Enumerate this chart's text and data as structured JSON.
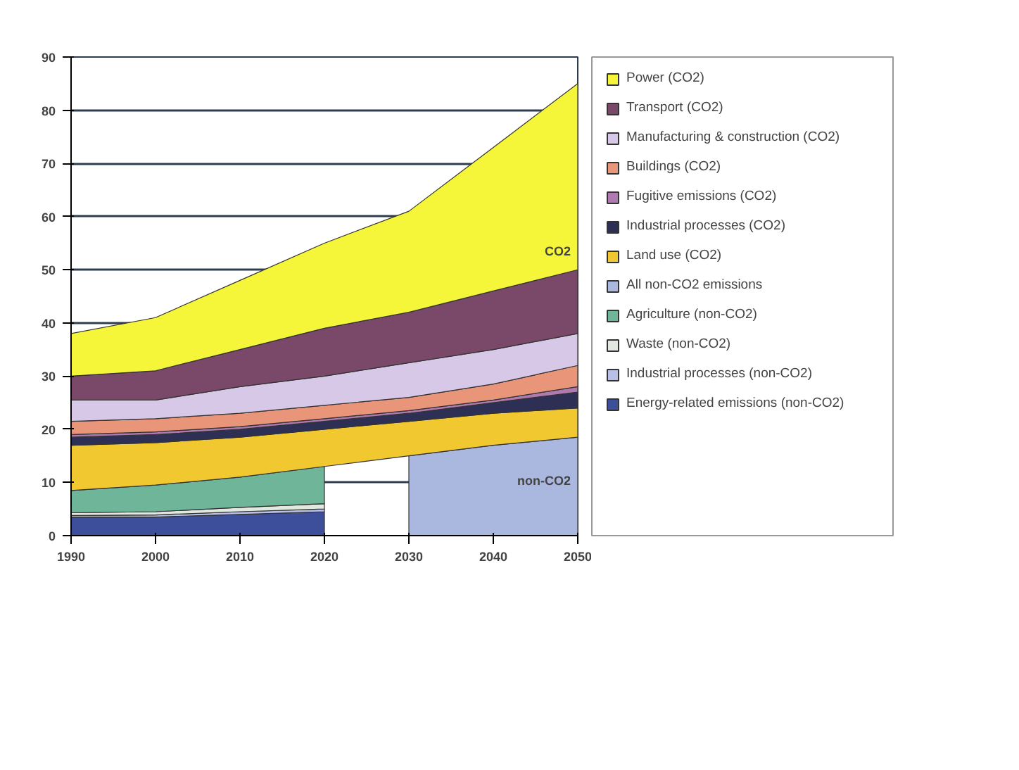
{
  "chart_data": {
    "type": "area",
    "stacked": true,
    "x": [
      1990,
      2000,
      2010,
      2020,
      2030,
      2040,
      2050
    ],
    "xlim": [
      1990,
      2050
    ],
    "xticks": [
      1990,
      2000,
      2010,
      2020,
      2030,
      2040,
      2050
    ],
    "ylim": [
      0,
      90
    ],
    "yticks": [
      0,
      10,
      20,
      30,
      40,
      50,
      60,
      70,
      80,
      90
    ],
    "grid": "y",
    "legend": "right",
    "series": [
      {
        "name": "Energy-related emissions (non-CO2)",
        "color": "#3d4f9a",
        "values": [
          3.5,
          3.5,
          4,
          4.5,
          null,
          null,
          null
        ]
      },
      {
        "name": "Industrial processes (non-CO2)",
        "color": "#b8c0e8",
        "values": [
          0.3,
          0.4,
          0.5,
          0.5,
          null,
          null,
          null
        ]
      },
      {
        "name": "Waste (non-CO2)",
        "color": "#e0e8e0",
        "values": [
          0.5,
          0.6,
          0.8,
          1,
          null,
          null,
          null
        ]
      },
      {
        "name": "Agriculture (non-CO2)",
        "color": "#6fb59a",
        "values": [
          4.2,
          5,
          5.7,
          7,
          null,
          null,
          null
        ]
      },
      {
        "name": "All non-CO2 emissions",
        "color": "#aab8e0",
        "values": [
          null,
          null,
          null,
          null,
          15,
          17,
          18.5
        ]
      },
      {
        "name": "Land use (CO2)",
        "color": "#f2c830",
        "values": [
          8.5,
          8,
          7.5,
          7,
          6.5,
          6,
          5.5
        ]
      },
      {
        "name": "Industrial processes (CO2)",
        "color": "#2e2f55",
        "values": [
          1.5,
          1.5,
          1.5,
          1.5,
          1.5,
          2,
          3
        ]
      },
      {
        "name": "Fugitive emissions (CO2)",
        "color": "#b07ab0",
        "values": [
          0.5,
          0.5,
          0.5,
          0.5,
          0.5,
          0.5,
          1
        ]
      },
      {
        "name": "Buildings (CO2)",
        "color": "#e8957a",
        "values": [
          2.5,
          2.5,
          2.5,
          2.5,
          2.5,
          3,
          4
        ]
      },
      {
        "name": "Manufacturing & construction (CO2)",
        "color": "#d8c8e8",
        "values": [
          4,
          3.5,
          5,
          5.5,
          6.5,
          6.5,
          6
        ]
      },
      {
        "name": "Transport (CO2)",
        "color": "#7a4868",
        "values": [
          4.5,
          5.5,
          7,
          9,
          9.5,
          11,
          12
        ]
      },
      {
        "name": "Power (CO2)",
        "color": "#f5f53a",
        "values": [
          8,
          10,
          13,
          16,
          19,
          27,
          35
        ]
      }
    ],
    "annotations": [
      "CO2",
      "non-CO2"
    ]
  }
}
